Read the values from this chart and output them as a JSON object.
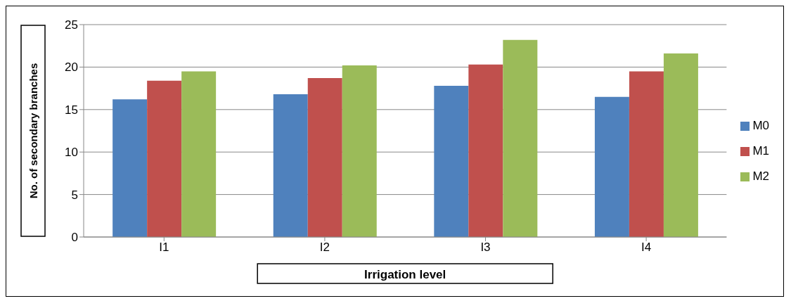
{
  "chart_data": {
    "type": "bar",
    "xlabel": "Irrigation level",
    "ylabel": "No. of secondary branches",
    "categories": [
      "I1",
      "I2",
      "I3",
      "I4"
    ],
    "series": [
      {
        "name": "M0",
        "color": "#4f81bd",
        "values": [
          16.2,
          16.8,
          17.8,
          16.5
        ]
      },
      {
        "name": "M1",
        "color": "#c0504d",
        "values": [
          18.4,
          18.7,
          20.3,
          19.5
        ]
      },
      {
        "name": "M2",
        "color": "#9bbb59",
        "values": [
          19.5,
          20.2,
          23.2,
          21.6
        ]
      }
    ],
    "ylim": [
      0,
      25
    ],
    "yticks": [
      0,
      5,
      10,
      15,
      20,
      25
    ],
    "grid": "y",
    "legend": "right"
  }
}
